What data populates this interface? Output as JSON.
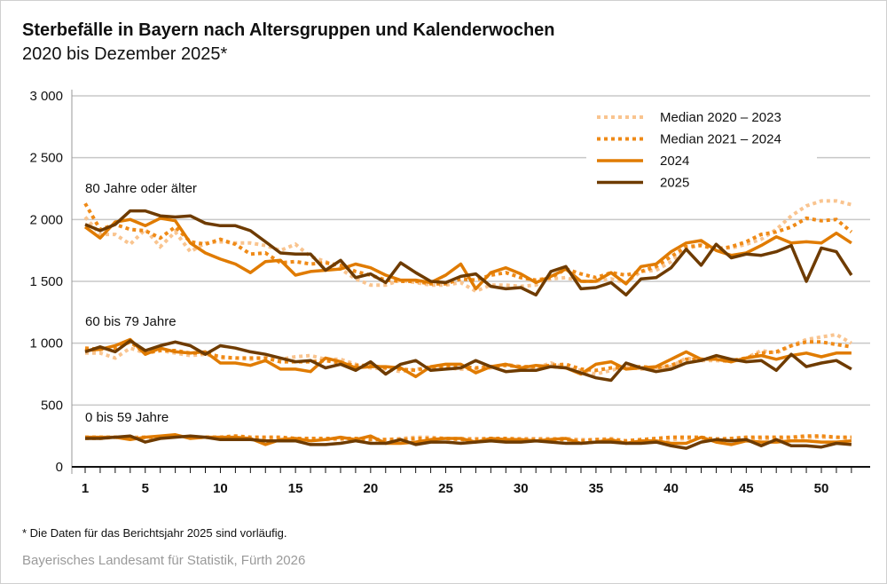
{
  "title": "Sterbefälle in Bayern nach Altersgruppen und Kalenderwochen",
  "subtitle": "2020 bis Dezember 2025*",
  "footnote": "* Die Daten für das Berichtsjahr 2025 sind vorläufig.",
  "source": "Bayerisches Landesamt für Statistik, Fürth 2026",
  "chart_data": {
    "type": "line",
    "title": "Sterbefälle in Bayern nach Altersgruppen und Kalenderwochen",
    "xlabel": "",
    "ylabel": "",
    "xlim": [
      1,
      52
    ],
    "ylim": [
      0,
      3000
    ],
    "x_ticks": [
      1,
      5,
      10,
      15,
      20,
      25,
      30,
      35,
      40,
      45,
      50
    ],
    "y_ticks": [
      0,
      500,
      1000,
      1500,
      2000,
      2500,
      3000
    ],
    "y_tick_labels": [
      "0",
      "500",
      "1 000",
      "1 500",
      "2 000",
      "2 500",
      "3 000"
    ],
    "grid": "horizontal",
    "legend_position": "top-right",
    "legend": [
      {
        "name": "Median 2020 – 2023",
        "color": "#f9c48f",
        "style": "dotted"
      },
      {
        "name": "Median 2021 – 2024",
        "color": "#ef8a17",
        "style": "dotted"
      },
      {
        "name": "2024",
        "color": "#e07b00",
        "style": "solid"
      },
      {
        "name": "2025",
        "color": "#6e3b00",
        "style": "solid"
      }
    ],
    "groups": [
      {
        "label": "80 Jahre oder älter",
        "series": [
          {
            "name": "Median 2020 – 2023",
            "values": [
              2020,
              1880,
              1880,
              1800,
              1920,
              1780,
              1900,
              1740,
              1810,
              1820,
              1810,
              1810,
              1790,
              1750,
              1800,
              1700,
              1660,
              1600,
              1520,
              1470,
              1470,
              1510,
              1490,
              1470,
              1470,
              1490,
              1420,
              1470,
              1470,
              1460,
              1470,
              1520,
              1530,
              1500,
              1500,
              1520,
              1490,
              1580,
              1590,
              1660,
              1760,
              1800,
              1770,
              1770,
              1800,
              1840,
              1920,
              2030,
              2110,
              2150,
              2150,
              2120
            ]
          },
          {
            "name": "Median 2021 – 2024",
            "values": [
              2130,
              1920,
              1960,
              1920,
              1910,
              1850,
              1940,
              1820,
              1800,
              1840,
              1800,
              1720,
              1730,
              1650,
              1660,
              1640,
              1650,
              1630,
              1580,
              1550,
              1510,
              1500,
              1500,
              1480,
              1480,
              1520,
              1510,
              1550,
              1570,
              1530,
              1510,
              1530,
              1600,
              1560,
              1530,
              1570,
              1550,
              1580,
              1620,
              1700,
              1780,
              1790,
              1760,
              1780,
              1820,
              1880,
              1900,
              1940,
              2010,
              1990,
              2000,
              1900
            ]
          },
          {
            "name": "2024",
            "values": [
              1940,
              1850,
              1980,
              2000,
              1950,
              2010,
              1990,
              1810,
              1730,
              1680,
              1640,
              1570,
              1660,
              1670,
              1550,
              1580,
              1590,
              1600,
              1640,
              1610,
              1550,
              1510,
              1510,
              1490,
              1550,
              1640,
              1440,
              1570,
              1610,
              1560,
              1490,
              1540,
              1600,
              1500,
              1500,
              1570,
              1480,
              1620,
              1640,
              1740,
              1810,
              1830,
              1750,
              1710,
              1730,
              1790,
              1860,
              1810,
              1820,
              1810,
              1890,
              1810
            ]
          },
          {
            "name": "2025",
            "values": [
              1960,
              1910,
              1960,
              2070,
              2070,
              2030,
              2020,
              2030,
              1970,
              1950,
              1950,
              1910,
              1820,
              1730,
              1720,
              1720,
              1590,
              1670,
              1530,
              1560,
              1490,
              1650,
              1570,
              1500,
              1490,
              1540,
              1560,
              1460,
              1440,
              1450,
              1390,
              1580,
              1620,
              1440,
              1450,
              1490,
              1390,
              1520,
              1530,
              1610,
              1760,
              1630,
              1800,
              1690,
              1720,
              1710,
              1740,
              1790,
              1500,
              1770,
              1740,
              1550
            ]
          }
        ]
      },
      {
        "label": "60 bis 79 Jahre",
        "series": [
          {
            "name": "Median 2020 – 2023",
            "values": [
              920,
              920,
              880,
              960,
              920,
              940,
              920,
              900,
              910,
              880,
              880,
              870,
              880,
              870,
              890,
              900,
              870,
              870,
              830,
              800,
              790,
              770,
              790,
              800,
              800,
              790,
              790,
              800,
              830,
              810,
              800,
              840,
              800,
              780,
              750,
              780,
              810,
              790,
              800,
              810,
              880,
              860,
              860,
              850,
              880,
              940,
              920,
              980,
              1030,
              1050,
              1070,
              1000
            ]
          },
          {
            "name": "Median 2021 – 2024",
            "values": [
              960,
              950,
              960,
              1010,
              920,
              940,
              940,
              920,
              920,
              890,
              880,
              880,
              880,
              850,
              850,
              850,
              860,
              840,
              820,
              820,
              800,
              790,
              780,
              810,
              810,
              810,
              800,
              810,
              820,
              810,
              810,
              820,
              830,
              790,
              780,
              800,
              800,
              810,
              800,
              820,
              870,
              870,
              880,
              860,
              880,
              920,
              930,
              980,
              1010,
              1010,
              990,
              970
            ]
          },
          {
            "name": "2024",
            "values": [
              940,
              950,
              980,
              1030,
              910,
              960,
              930,
              920,
              930,
              840,
              840,
              820,
              860,
              790,
              790,
              770,
              880,
              850,
              800,
              810,
              810,
              800,
              730,
              810,
              830,
              830,
              760,
              810,
              830,
              800,
              820,
              810,
              800,
              750,
              830,
              850,
              790,
              800,
              810,
              870,
              930,
              870,
              870,
              850,
              880,
              900,
              870,
              900,
              920,
              890,
              920,
              920
            ]
          },
          {
            "name": "2025",
            "values": [
              930,
              970,
              930,
              1020,
              940,
              980,
              1010,
              980,
              910,
              980,
              960,
              930,
              910,
              880,
              850,
              860,
              800,
              830,
              780,
              850,
              750,
              830,
              860,
              780,
              790,
              800,
              860,
              810,
              770,
              780,
              780,
              810,
              800,
              760,
              720,
              700,
              840,
              800,
              770,
              790,
              840,
              860,
              900,
              870,
              850,
              860,
              780,
              910,
              810,
              840,
              860,
              790
            ]
          }
        ]
      },
      {
        "label": "0 bis 59 Jahre",
        "series": [
          {
            "name": "Median 2020 – 2023",
            "values": [
              230,
              230,
              240,
              240,
              240,
              240,
              250,
              240,
              240,
              240,
              240,
              230,
              230,
              230,
              230,
              230,
              220,
              220,
              230,
              220,
              220,
              230,
              240,
              240,
              230,
              230,
              230,
              230,
              230,
              230,
              230,
              230,
              230,
              220,
              220,
              230,
              210,
              220,
              220,
              220,
              230,
              230,
              230,
              230,
              230,
              230,
              230,
              230,
              240,
              240,
              240,
              230
            ]
          },
          {
            "name": "Median 2021 – 2024",
            "values": [
              240,
              240,
              240,
              230,
              240,
              240,
              250,
              240,
              240,
              240,
              250,
              240,
              240,
              240,
              230,
              230,
              230,
              230,
              230,
              220,
              220,
              220,
              230,
              230,
              230,
              220,
              220,
              230,
              230,
              220,
              220,
              220,
              220,
              210,
              220,
              220,
              210,
              220,
              230,
              240,
              240,
              240,
              220,
              230,
              240,
              240,
              240,
              240,
              250,
              250,
              240,
              240
            ]
          },
          {
            "name": "2024",
            "values": [
              240,
              240,
              240,
              220,
              240,
              250,
              260,
              230,
              240,
              240,
              240,
              230,
              180,
              220,
              230,
              210,
              220,
              240,
              220,
              250,
              190,
              190,
              200,
              220,
              230,
              230,
              200,
              230,
              220,
              220,
              210,
              220,
              230,
              190,
              200,
              220,
              190,
              210,
              210,
              190,
              190,
              240,
              200,
              180,
              210,
              200,
              200,
              210,
              210,
              200,
              200,
              210
            ]
          },
          {
            "name": "2025",
            "values": [
              230,
              230,
              240,
              250,
              200,
              230,
              240,
              250,
              240,
              220,
              220,
              220,
              210,
              210,
              210,
              180,
              180,
              190,
              210,
              190,
              190,
              220,
              180,
              200,
              200,
              190,
              200,
              210,
              200,
              200,
              210,
              200,
              190,
              190,
              200,
              200,
              190,
              190,
              200,
              170,
              150,
              200,
              220,
              210,
              220,
              170,
              220,
              170,
              170,
              160,
              190,
              180
            ]
          }
        ]
      }
    ]
  }
}
